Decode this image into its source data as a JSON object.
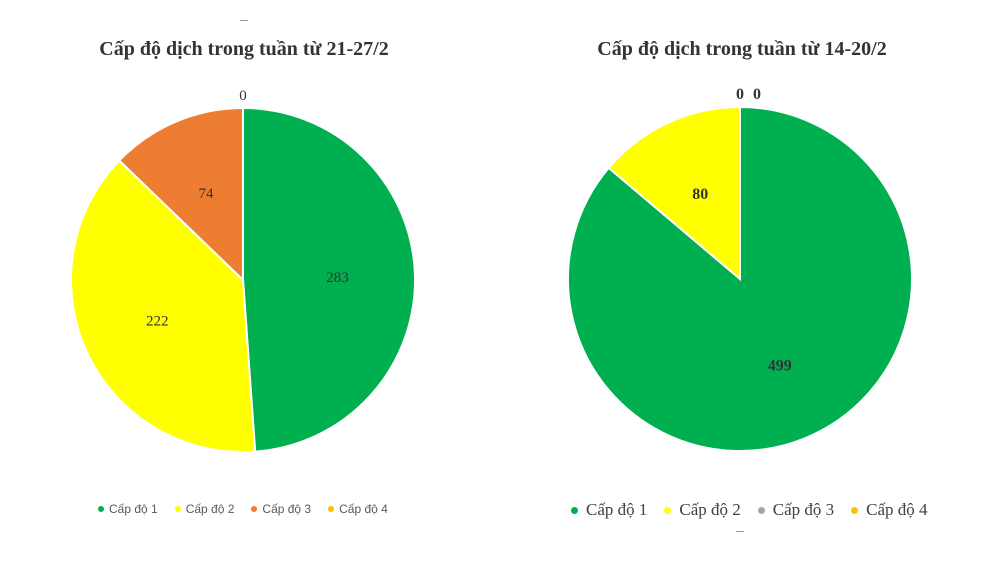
{
  "chart_data": [
    {
      "type": "pie",
      "title": "Cấp độ dịch trong tuần từ 21-27/2",
      "categories": [
        "Cấp độ 1",
        "Cấp độ 2",
        "Cấp độ 3",
        "Cấp độ 4"
      ],
      "values": [
        283,
        222,
        74,
        0
      ],
      "colors": [
        "#00B050",
        "#FFFF00",
        "#ED7D31",
        "#FFC000"
      ],
      "legend_position": "bottom"
    },
    {
      "type": "pie",
      "title": "Cấp độ dịch trong tuần từ 14-20/2",
      "categories": [
        "Cấp độ 1",
        "Cấp độ 2",
        "Cấp độ 3",
        "Cấp độ 4"
      ],
      "values": [
        499,
        80,
        0,
        0
      ],
      "colors": [
        "#00B050",
        "#FFFF00",
        "#A5A5A5",
        "#FFC000"
      ],
      "legend_position": "bottom"
    }
  ]
}
